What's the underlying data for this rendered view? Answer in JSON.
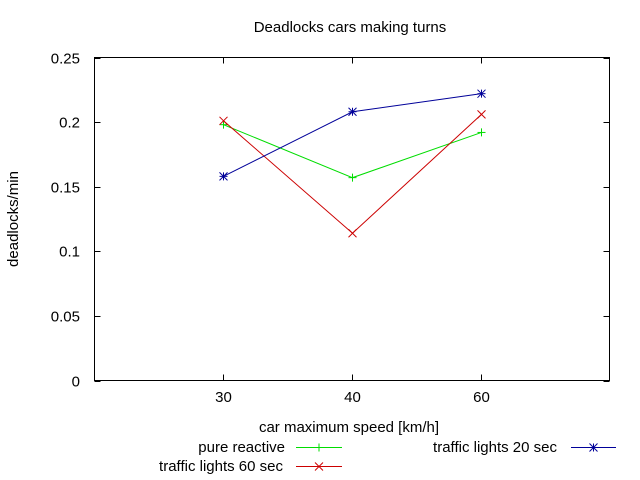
{
  "chart_data": {
    "type": "line",
    "title": "Deadlocks cars making turns",
    "xlabel": "car maximum speed [km/h]",
    "ylabel": "deadlocks/min",
    "categories": [
      "30",
      "40",
      "60"
    ],
    "ylim": [
      0,
      0.25
    ],
    "yticks": [
      "0",
      "0.05",
      "0.1",
      "0.15",
      "0.2",
      "0.25"
    ],
    "grid": false,
    "legend_position": "bottom",
    "series": [
      {
        "name": "pure reactive",
        "values": [
          0.198,
          0.157,
          0.192
        ],
        "color": "#00dd00",
        "marker": "plus"
      },
      {
        "name": "traffic lights 60 sec",
        "values": [
          0.201,
          0.114,
          0.206
        ],
        "color": "#cc0000",
        "marker": "cross"
      },
      {
        "name": "traffic lights 20 sec",
        "values": [
          0.158,
          0.208,
          0.222
        ],
        "color": "#000099",
        "marker": "star"
      }
    ]
  }
}
